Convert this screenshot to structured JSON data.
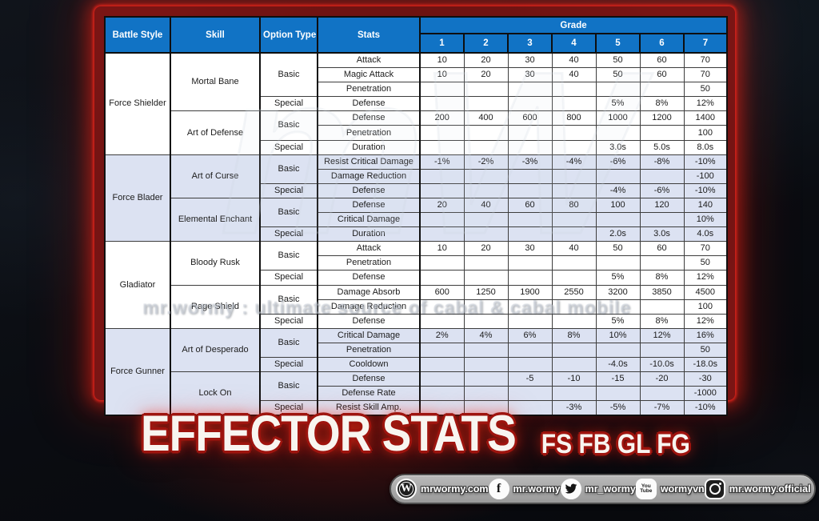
{
  "title": {
    "main": "EFFECTOR STATS",
    "sub": "FS FB GL FG"
  },
  "watermark": {
    "big": "mW",
    "line": "mr.wormy : ultimate source of cabal & cabal mobile"
  },
  "colors": {
    "header_blue": "#1173c5",
    "shaded_row": "#dce2f2",
    "frame_red": "#7a1514",
    "glow_red": "#e8251d",
    "bar_gray": "#aaaaaa",
    "title_white": "#f8f5f0",
    "title_outline_red": "#9e140e"
  },
  "table": {
    "headers": {
      "battle_style": "Battle Style",
      "skill": "Skill",
      "option_type": "Option Type",
      "stats": "Stats",
      "grade": "Grade",
      "grade_numbers": [
        "1",
        "2",
        "3",
        "4",
        "5",
        "6",
        "7"
      ]
    },
    "sections": [
      {
        "battle_style": "Force Shielder",
        "skills": [
          {
            "name": "Mortal Bane",
            "groups": [
              {
                "option_type": "Basic",
                "rows": [
                  {
                    "stat": "Attack",
                    "values": [
                      "10",
                      "20",
                      "30",
                      "40",
                      "50",
                      "60",
                      "70"
                    ]
                  },
                  {
                    "stat": "Magic Attack",
                    "values": [
                      "10",
                      "20",
                      "30",
                      "40",
                      "50",
                      "60",
                      "70"
                    ]
                  },
                  {
                    "stat": "Penetration",
                    "values": [
                      "",
                      "",
                      "",
                      "",
                      "",
                      "",
                      "50"
                    ]
                  }
                ]
              },
              {
                "option_type": "Special",
                "rows": [
                  {
                    "stat": "Defense",
                    "values": [
                      "",
                      "",
                      "",
                      "",
                      "5%",
                      "8%",
                      "12%"
                    ]
                  }
                ]
              }
            ]
          },
          {
            "name": "Art of Defense",
            "groups": [
              {
                "option_type": "Basic",
                "rows": [
                  {
                    "stat": "Defense",
                    "values": [
                      "200",
                      "400",
                      "600",
                      "800",
                      "1000",
                      "1200",
                      "1400"
                    ]
                  },
                  {
                    "stat": "Penetration",
                    "values": [
                      "",
                      "",
                      "",
                      "",
                      "",
                      "",
                      "100"
                    ]
                  }
                ]
              },
              {
                "option_type": "Special",
                "rows": [
                  {
                    "stat": "Duration",
                    "values": [
                      "",
                      "",
                      "",
                      "",
                      "3.0s",
                      "5.0s",
                      "8.0s"
                    ]
                  }
                ]
              }
            ]
          }
        ]
      },
      {
        "battle_style": "Force Blader",
        "skills": [
          {
            "name": "Art of Curse",
            "groups": [
              {
                "option_type": "Basic",
                "rows": [
                  {
                    "stat": "Resist Critical Damage",
                    "values": [
                      "-1%",
                      "-2%",
                      "-3%",
                      "-4%",
                      "-6%",
                      "-8%",
                      "-10%"
                    ]
                  },
                  {
                    "stat": "Damage Reduction",
                    "values": [
                      "",
                      "",
                      "",
                      "",
                      "",
                      "",
                      "-100"
                    ]
                  }
                ]
              },
              {
                "option_type": "Special",
                "rows": [
                  {
                    "stat": "Defense",
                    "values": [
                      "",
                      "",
                      "",
                      "",
                      "-4%",
                      "-6%",
                      "-10%"
                    ]
                  }
                ]
              }
            ]
          },
          {
            "name": "Elemental Enchant",
            "groups": [
              {
                "option_type": "Basic",
                "rows": [
                  {
                    "stat": "Defense",
                    "values": [
                      "20",
                      "40",
                      "60",
                      "80",
                      "100",
                      "120",
                      "140"
                    ]
                  },
                  {
                    "stat": "Critical Damage",
                    "values": [
                      "",
                      "",
                      "",
                      "",
                      "",
                      "",
                      "10%"
                    ]
                  }
                ]
              },
              {
                "option_type": "Special",
                "rows": [
                  {
                    "stat": "Duration",
                    "values": [
                      "",
                      "",
                      "",
                      "",
                      "2.0s",
                      "3.0s",
                      "4.0s"
                    ]
                  }
                ]
              }
            ]
          }
        ]
      },
      {
        "battle_style": "Gladiator",
        "skills": [
          {
            "name": "Bloody Rusk",
            "groups": [
              {
                "option_type": "Basic",
                "rows": [
                  {
                    "stat": "Attack",
                    "values": [
                      "10",
                      "20",
                      "30",
                      "40",
                      "50",
                      "60",
                      "70"
                    ]
                  },
                  {
                    "stat": "Penetration",
                    "values": [
                      "",
                      "",
                      "",
                      "",
                      "",
                      "",
                      "50"
                    ]
                  }
                ]
              },
              {
                "option_type": "Special",
                "rows": [
                  {
                    "stat": "Defense",
                    "values": [
                      "",
                      "",
                      "",
                      "",
                      "5%",
                      "8%",
                      "12%"
                    ]
                  }
                ]
              }
            ]
          },
          {
            "name": "Rage Shield",
            "groups": [
              {
                "option_type": "Basic",
                "rows": [
                  {
                    "stat": "Damage Absorb",
                    "values": [
                      "600",
                      "1250",
                      "1900",
                      "2550",
                      "3200",
                      "3850",
                      "4500"
                    ]
                  },
                  {
                    "stat": "Damage Reduction",
                    "values": [
                      "",
                      "",
                      "",
                      "",
                      "",
                      "",
                      "100"
                    ]
                  }
                ]
              },
              {
                "option_type": "Special",
                "rows": [
                  {
                    "stat": "Defense",
                    "values": [
                      "",
                      "",
                      "",
                      "",
                      "5%",
                      "8%",
                      "12%"
                    ]
                  }
                ]
              }
            ]
          }
        ]
      },
      {
        "battle_style": "Force Gunner",
        "skills": [
          {
            "name": "Art of Desperado",
            "groups": [
              {
                "option_type": "Basic",
                "rows": [
                  {
                    "stat": "Critical Damage",
                    "values": [
                      "2%",
                      "4%",
                      "6%",
                      "8%",
                      "10%",
                      "12%",
                      "16%"
                    ]
                  },
                  {
                    "stat": "Penetration",
                    "values": [
                      "",
                      "",
                      "",
                      "",
                      "",
                      "",
                      "50"
                    ]
                  }
                ]
              },
              {
                "option_type": "Special",
                "rows": [
                  {
                    "stat": "Cooldown",
                    "values": [
                      "",
                      "",
                      "",
                      "",
                      "-4.0s",
                      "-10.0s",
                      "-18.0s"
                    ]
                  }
                ]
              }
            ]
          },
          {
            "name": "Lock On",
            "groups": [
              {
                "option_type": "Basic",
                "rows": [
                  {
                    "stat": "Defense",
                    "values": [
                      "",
                      "",
                      "-5",
                      "-10",
                      "-15",
                      "-20",
                      "-30"
                    ]
                  },
                  {
                    "stat": "Defense Rate",
                    "values": [
                      "",
                      "",
                      "",
                      "",
                      "",
                      "",
                      "-1000"
                    ]
                  }
                ]
              },
              {
                "option_type": "Special",
                "rows": [
                  {
                    "stat": "Resist Skill Amp.",
                    "values": [
                      "",
                      "",
                      "",
                      "-3%",
                      "-5%",
                      "-7%",
                      "-10%"
                    ]
                  }
                ]
              }
            ]
          }
        ]
      }
    ]
  },
  "social": {
    "items": [
      {
        "icon": "wordpress-icon",
        "label": "mrwormy.com"
      },
      {
        "icon": "facebook-icon",
        "label": "mr.wormy"
      },
      {
        "icon": "twitter-icon",
        "label": "mr_wormy"
      },
      {
        "icon": "youtube-icon",
        "label": "wormyvn"
      },
      {
        "icon": "instagram-icon",
        "label": "mr.wormy.official"
      }
    ],
    "youtube_glyph_top": "You",
    "youtube_glyph_bottom": "Tube",
    "wordpress_glyph": "W",
    "facebook_glyph": "f"
  }
}
